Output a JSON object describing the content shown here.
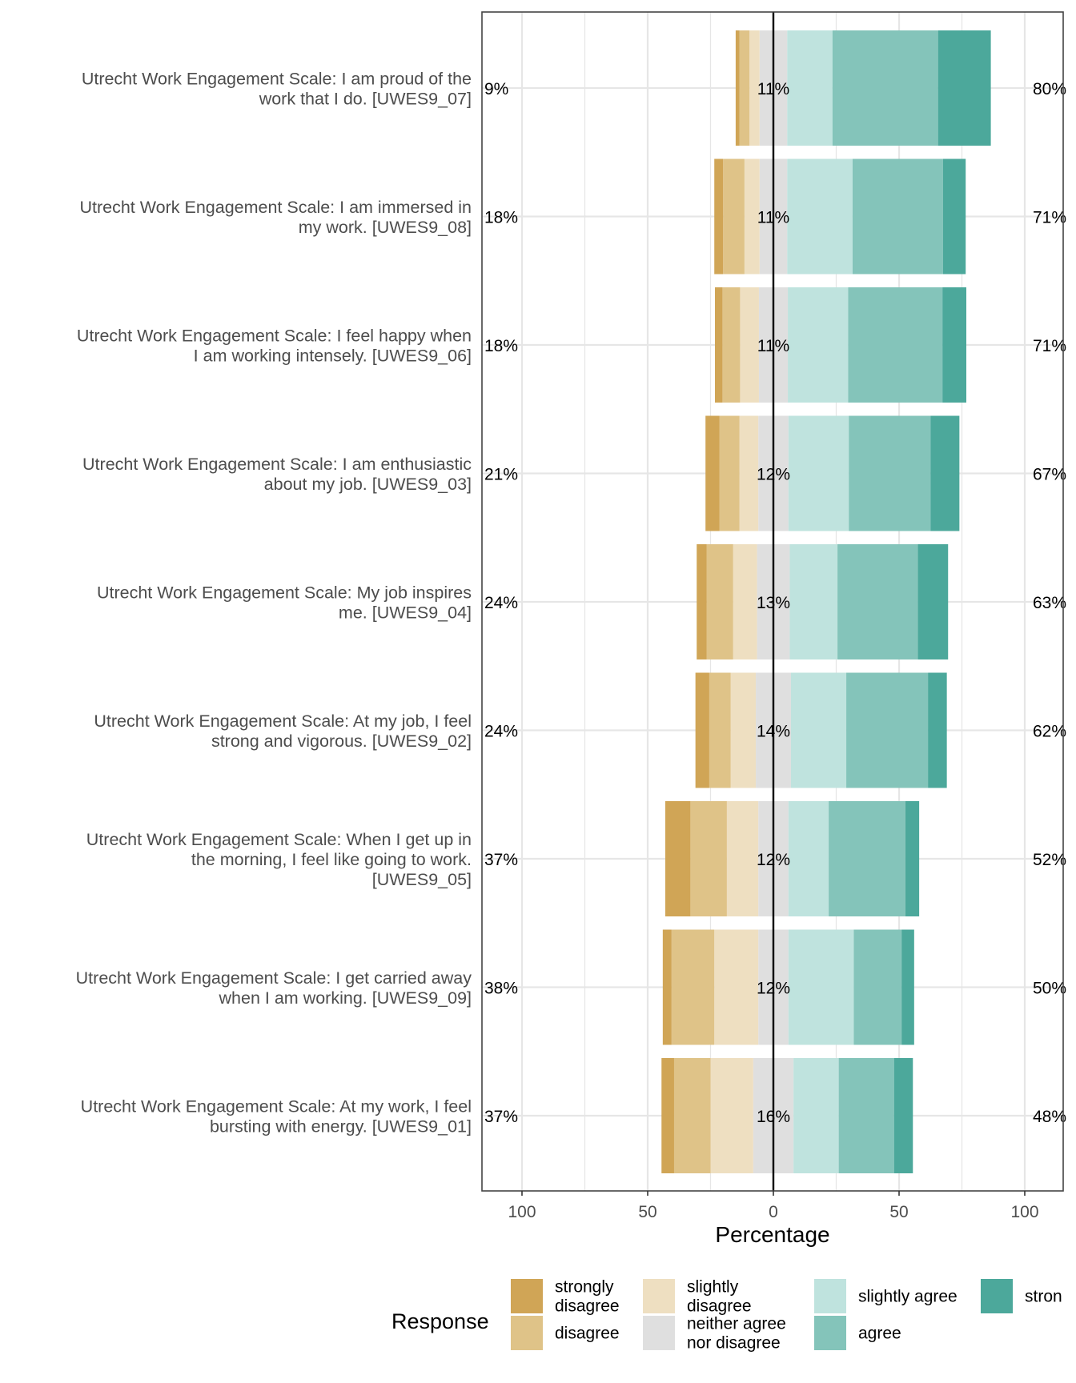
{
  "chart_data": {
    "type": "bar",
    "subtype": "diverging-stacked-likert",
    "xlabel": "Percentage",
    "xlim": [
      -100,
      100
    ],
    "xticks": [
      -100,
      -50,
      0,
      50,
      100
    ],
    "xtick_labels": [
      "100",
      "50",
      "0",
      "50",
      "100"
    ],
    "legend_title": "Response",
    "legend_position": "bottom",
    "levels": [
      {
        "key": "strongly_disagree",
        "label": "strongly disagree",
        "color": "#D0A556"
      },
      {
        "key": "disagree",
        "label": "disagree",
        "color": "#DFC388"
      },
      {
        "key": "slightly_disagree",
        "label": "slightly disagree",
        "color": "#EEDFC1"
      },
      {
        "key": "neither",
        "label": "neither agree nor disagree",
        "color": "#DFDFDF"
      },
      {
        "key": "slightly_agree",
        "label": "slightly agree",
        "color": "#BFE3DE"
      },
      {
        "key": "agree",
        "label": "agree",
        "color": "#84C4BA"
      },
      {
        "key": "strongly_agree",
        "label": "strongly agree",
        "legend_text": "stron",
        "color": "#4CA89B"
      }
    ],
    "items": [
      {
        "label": "Utrecht Work Engagement Scale: I am proud of the work that I do. [UWES9_07]",
        "label_lines": [
          "Utrecht Work Engagement Scale: I am proud of the",
          "work that I do. [UWES9_07]"
        ],
        "values": [
          1.5,
          4,
          4,
          11,
          18,
          42,
          21
        ],
        "low": "9%",
        "neutral": "11%",
        "high": "80%"
      },
      {
        "label": "Utrecht Work Engagement Scale: I am immersed in my work. [UWES9_08]",
        "label_lines": [
          "Utrecht Work Engagement Scale: I am immersed in",
          "my work. [UWES9_08]"
        ],
        "values": [
          3.5,
          8.5,
          6,
          11,
          26,
          36,
          9
        ],
        "low": "18%",
        "neutral": "11%",
        "high": "71%"
      },
      {
        "label": "Utrecht Work Engagement Scale: I feel happy when I am working intensely. [UWES9_06]",
        "label_lines": [
          "Utrecht Work Engagement Scale: I feel happy when",
          "I am working intensely. [UWES9_06]"
        ],
        "values": [
          3,
          7,
          7.5,
          11.5,
          24,
          37.5,
          9.5
        ],
        "low": "18%",
        "neutral": "11%",
        "high": "71%"
      },
      {
        "label": "Utrecht Work Engagement Scale: I am enthusiastic about my job. [UWES9_03]",
        "label_lines": [
          "Utrecht Work Engagement Scale: I am enthusiastic",
          "about my job. [UWES9_03]"
        ],
        "values": [
          5.5,
          8,
          7.5,
          12,
          24,
          32.5,
          11.5
        ],
        "low": "21%",
        "neutral": "12%",
        "high": "67%"
      },
      {
        "label": "Utrecht Work Engagement Scale: My job inspires me. [UWES9_04]",
        "label_lines": [
          "Utrecht Work Engagement Scale: My job inspires",
          "me. [UWES9_04]"
        ],
        "values": [
          4,
          10.5,
          9.5,
          13,
          19,
          32,
          12
        ],
        "low": "24%",
        "neutral": "13%",
        "high": "63%"
      },
      {
        "label": "Utrecht Work Engagement Scale: At my job, I feel strong and vigorous. [UWES9_02]",
        "label_lines": [
          "Utrecht Work Engagement Scale: At my job, I feel",
          "strong and vigorous. [UWES9_02]"
        ],
        "values": [
          5.5,
          8.5,
          10,
          14,
          22,
          32.5,
          7.5
        ],
        "low": "24%",
        "neutral": "14%",
        "high": "62%"
      },
      {
        "label": "Utrecht Work Engagement Scale: When I get up in the morning, I feel like going to work. [UWES9_05]",
        "label_lines": [
          "Utrecht Work Engagement Scale: When I get up in",
          "the morning, I feel like going to work.",
          "[UWES9_05]"
        ],
        "values": [
          10,
          14.5,
          12.5,
          12,
          16,
          30.5,
          5.5
        ],
        "low": "37%",
        "neutral": "12%",
        "high": "52%"
      },
      {
        "label": "Utrecht Work Engagement Scale: I get carried away when I am working. [UWES9_09]",
        "label_lines": [
          "Utrecht Work Engagement Scale: I get carried away",
          "when I am working. [UWES9_09]"
        ],
        "values": [
          3.5,
          17,
          17.5,
          12,
          26,
          19,
          5
        ],
        "low": "38%",
        "neutral": "12%",
        "high": "50%"
      },
      {
        "label": "Utrecht Work Engagement Scale: At my work, I feel bursting with energy. [UWES9_01]",
        "label_lines": [
          "Utrecht Work Engagement Scale: At my work, I feel",
          "bursting with energy. [UWES9_01]"
        ],
        "values": [
          5,
          14.5,
          17,
          16,
          18,
          22,
          7.5
        ],
        "low": "37%",
        "neutral": "16%",
        "high": "48%"
      }
    ]
  }
}
